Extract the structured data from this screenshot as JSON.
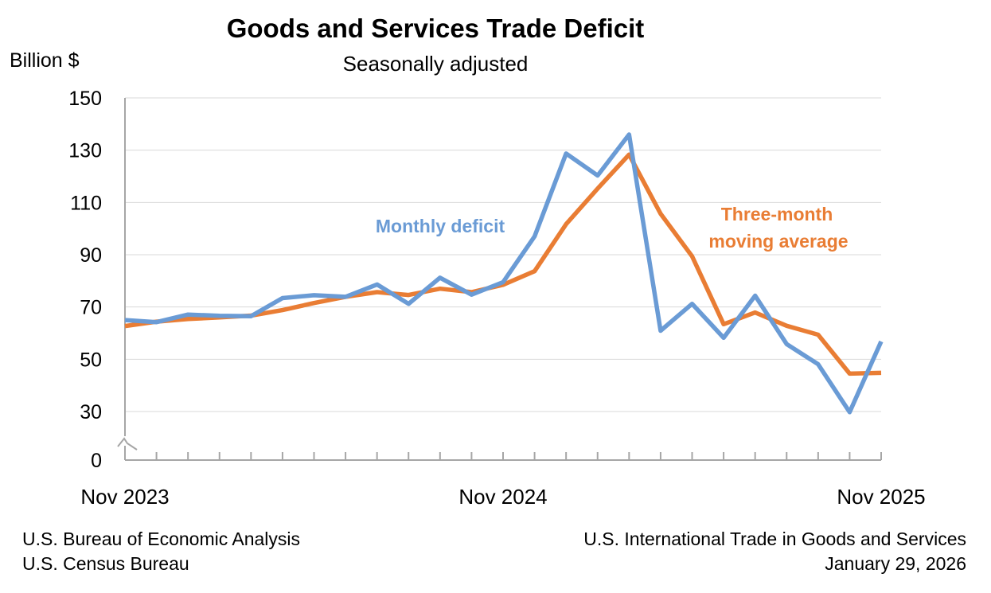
{
  "chart_data": {
    "type": "line",
    "title": "Goods and Services Trade Deficit",
    "subtitle": "Seasonally adjusted",
    "ylabel": "Billion $",
    "ylim": [
      0,
      150
    ],
    "y_axis_break": true,
    "yticks": [
      0,
      30,
      50,
      70,
      90,
      110,
      130,
      150
    ],
    "x": [
      "Nov 2023",
      "Dec 2023",
      "Jan 2024",
      "Feb 2024",
      "Mar 2024",
      "Apr 2024",
      "May 2024",
      "Jun 2024",
      "Jul 2024",
      "Aug 2024",
      "Sep 2024",
      "Oct 2024",
      "Nov 2024",
      "Dec 2024",
      "Jan 2025",
      "Feb 2025",
      "Mar 2025",
      "Apr 2025",
      "May 2025",
      "Jun 2025",
      "Jul 2025",
      "Aug 2025",
      "Sep 2025",
      "Oct 2025",
      "Nov 2025"
    ],
    "xtick_labels": [
      "Nov 2023",
      "Nov 2024",
      "Nov 2025"
    ],
    "grid": true,
    "series": [
      {
        "name": "Monthly deficit",
        "color": "#6a9bd5",
        "values": [
          65.0,
          64.2,
          67.1,
          66.6,
          66.5,
          73.4,
          74.5,
          73.9,
          78.6,
          71.2,
          81.2,
          74.7,
          79.5,
          97.0,
          128.7,
          120.3,
          136.0,
          60.9,
          71.2,
          58.2,
          74.3,
          55.8,
          48.1,
          29.6,
          56.8
        ]
      },
      {
        "name": "Three-month moving average",
        "color": "#e97d34",
        "values": [
          62.7,
          64.4,
          65.4,
          66.0,
          66.7,
          68.8,
          71.5,
          73.9,
          75.7,
          74.6,
          77.0,
          75.7,
          78.5,
          83.7,
          101.7,
          115.3,
          128.3,
          105.7,
          89.4,
          63.4,
          67.9,
          62.8,
          59.4,
          44.5,
          44.8
        ]
      }
    ],
    "annotations": [
      {
        "text": "Monthly deficit",
        "series": 0
      },
      {
        "text": "Three-month",
        "series": 1
      },
      {
        "text": "moving average",
        "series": 1
      }
    ]
  },
  "footer": {
    "left_line1": "U.S. Bureau of Economic Analysis",
    "left_line2": "U.S. Census Bureau",
    "right_line1": "U.S. International Trade in Goods and Services",
    "right_line2": "January 29, 2026"
  }
}
